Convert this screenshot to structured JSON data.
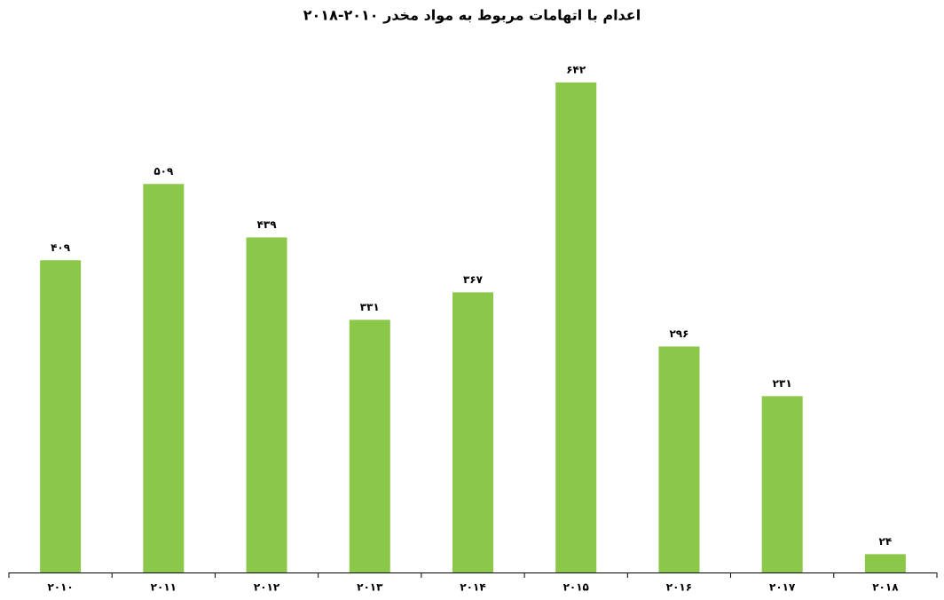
{
  "chart_data": {
    "type": "bar",
    "title": "اعدام با اتهامات مربوط به مواد مخدر ۲۰۱۰-۲۰۱۸",
    "categories": [
      "۲۰۱۰",
      "۲۰۱۱",
      "۲۰۱۲",
      "۲۰۱۳",
      "۲۰۱۴",
      "۲۰۱۵",
      "۲۰۱۶",
      "۲۰۱۷",
      "۲۰۱۸"
    ],
    "values": [
      409,
      509,
      439,
      331,
      367,
      642,
      296,
      231,
      24
    ],
    "value_labels": [
      "۴۰۹",
      "۵۰۹",
      "۴۳۹",
      "۳۳۱",
      "۳۶۷",
      "۶۴۲",
      "۲۹۶",
      "۲۳۱",
      "۲۴"
    ],
    "color": "#8bc84a",
    "ylim": [
      0,
      700
    ]
  }
}
